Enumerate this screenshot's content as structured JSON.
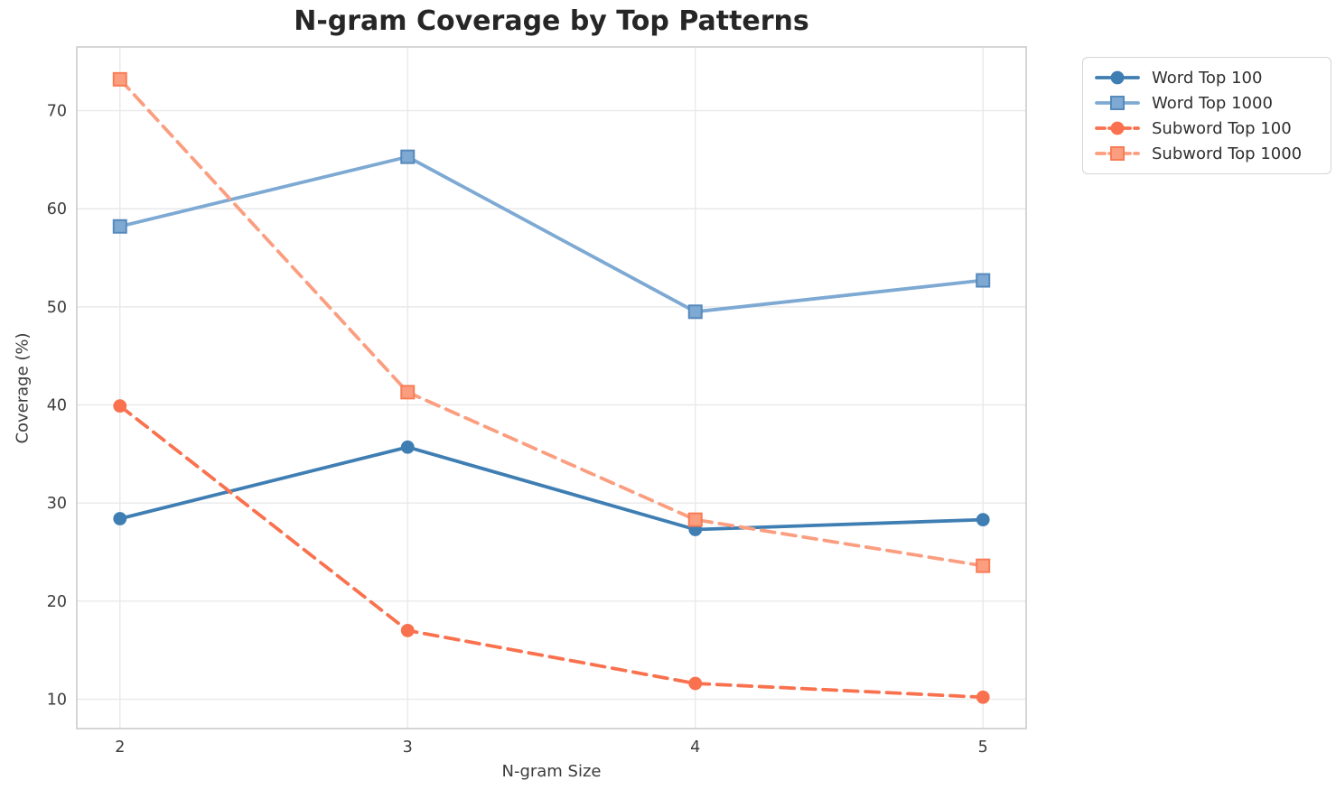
{
  "chart_data": {
    "type": "line",
    "title": "N-gram Coverage by Top Patterns",
    "xlabel": "N-gram Size",
    "ylabel": "Coverage (%)",
    "x": [
      2,
      3,
      4,
      5
    ],
    "xtick_labels": [
      "2",
      "3",
      "4",
      "5"
    ],
    "ytick_values": [
      10,
      20,
      30,
      40,
      50,
      60,
      70
    ],
    "xlim": [
      1.85,
      5.15
    ],
    "ylim": [
      7.0,
      76.5
    ],
    "grid": true,
    "legend_position": "outside upper right",
    "series": [
      {
        "name": "Word Top 100",
        "values": [
          28.4,
          35.7,
          27.3,
          28.3
        ],
        "color": "#3f7eb3",
        "edge_color": "#3f7eb3",
        "linestyle": "solid",
        "marker": "circle"
      },
      {
        "name": "Word Top 1000",
        "values": [
          58.2,
          65.3,
          49.5,
          52.7
        ],
        "color": "#7da9d3",
        "edge_color": "#5689bc",
        "linestyle": "solid",
        "marker": "square"
      },
      {
        "name": "Subword Top 100",
        "values": [
          39.9,
          17.0,
          11.6,
          10.2
        ],
        "color": "#f9714e",
        "edge_color": "#f9714e",
        "linestyle": "dashed",
        "marker": "circle"
      },
      {
        "name": "Subword Top 1000",
        "values": [
          73.2,
          41.3,
          28.3,
          23.6
        ],
        "color": "#fb9e80",
        "edge_color": "#f87c55",
        "linestyle": "dashed",
        "marker": "square"
      }
    ],
    "style": {
      "background": "#ffffff",
      "grid_color": "#e9e9e9",
      "spine_color": "#cccccc",
      "tick_text_color": "#3b3b3b",
      "title_color": "#262626"
    }
  }
}
